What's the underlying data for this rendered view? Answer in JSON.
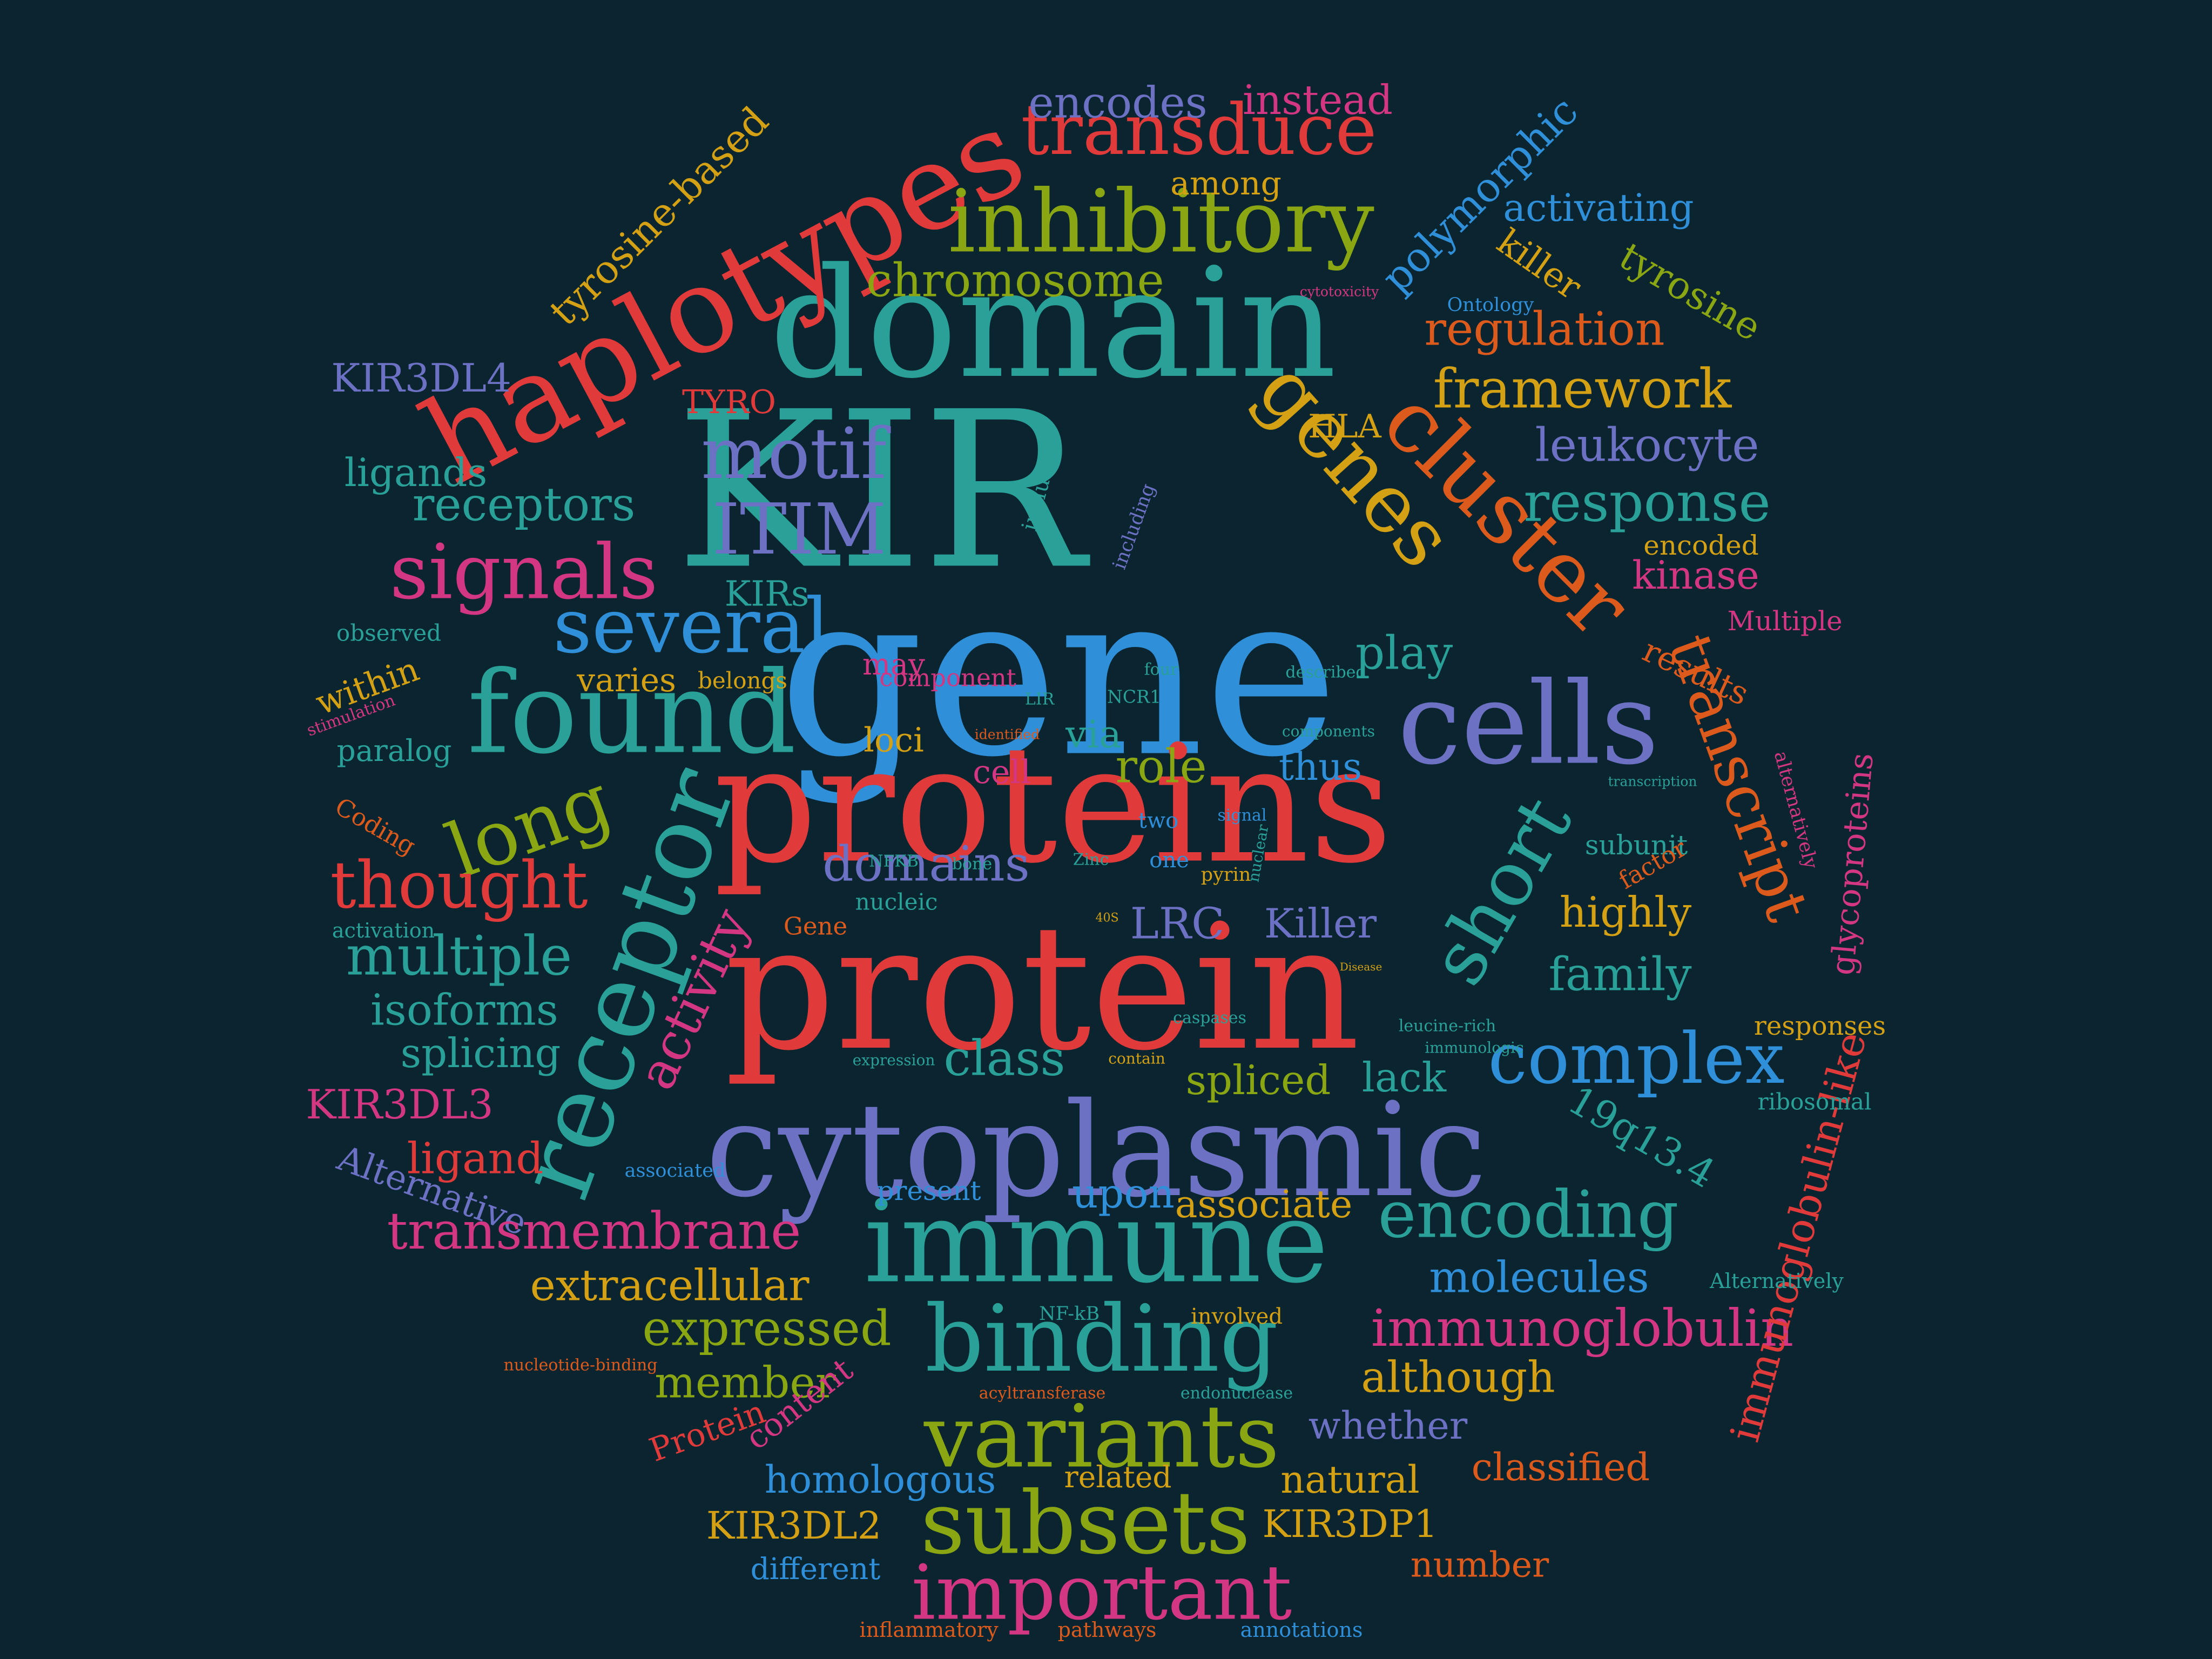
{
  "background": "#0b2530",
  "palette": {
    "red": "#e03a3a",
    "teal": "#2aa198",
    "blue": "#2f8fd8",
    "olive": "#8aa613",
    "gold": "#d4a014",
    "magenta": "#d33682",
    "purple": "#6c71c4",
    "orange": "#dd5a1d"
  },
  "words": [
    {
      "text": "gene",
      "color": "#2f8fd8"
    },
    {
      "text": "KIR",
      "color": "#2aa198"
    },
    {
      "text": "proteins",
      "color": "#e03a3a"
    },
    {
      "text": "protein",
      "color": "#e03a3a"
    },
    {
      "text": "domain",
      "color": "#2aa198"
    },
    {
      "text": "cytoplasmic",
      "color": "#6c71c4"
    },
    {
      "text": "immune",
      "color": "#2aa198"
    },
    {
      "text": "haplotypes",
      "color": "#e03a3a"
    },
    {
      "text": "found",
      "color": "#2aa198"
    },
    {
      "text": "cells",
      "color": "#6c71c4"
    },
    {
      "text": "inhibitory",
      "color": "#8aa613"
    },
    {
      "text": "binding",
      "color": "#2aa198"
    },
    {
      "text": "receptor",
      "color": "#2aa198"
    },
    {
      "text": "variants",
      "color": "#8aa613"
    },
    {
      "text": "cluster",
      "color": "#dd5a1d"
    },
    {
      "text": "genes",
      "color": "#d4a014"
    },
    {
      "text": "transduce",
      "color": "#e03a3a"
    },
    {
      "text": "subsets",
      "color": "#8aa613"
    },
    {
      "text": "important",
      "color": "#d33682"
    },
    {
      "text": "several",
      "color": "#2f8fd8"
    },
    {
      "text": "signals",
      "color": "#d33682"
    },
    {
      "text": "short",
      "color": "#2aa198"
    },
    {
      "text": "transcript",
      "color": "#dd5a1d"
    },
    {
      "text": "long",
      "color": "#8aa613"
    },
    {
      "text": "motif",
      "color": "#6c71c4"
    },
    {
      "text": "ITIM",
      "color": "#6c71c4"
    },
    {
      "text": "complex",
      "color": "#2f8fd8"
    },
    {
      "text": "thought",
      "color": "#e03a3a"
    },
    {
      "text": "encoding",
      "color": "#2aa198"
    },
    {
      "text": "immunoglobulin",
      "color": "#d33682"
    },
    {
      "text": "immunoglobulin-like",
      "color": "#e03a3a"
    },
    {
      "text": "framework",
      "color": "#d4a014"
    },
    {
      "text": "response",
      "color": "#2aa198"
    },
    {
      "text": "regulation",
      "color": "#dd5a1d"
    },
    {
      "text": "chromosome",
      "color": "#8aa613"
    },
    {
      "text": "encodes",
      "color": "#6c71c4"
    },
    {
      "text": "instead",
      "color": "#d33682"
    },
    {
      "text": "polymorphic",
      "color": "#2f8fd8"
    },
    {
      "text": "tyrosine-based",
      "color": "#d4a014"
    },
    {
      "text": "activating",
      "color": "#2f8fd8"
    },
    {
      "text": "killer",
      "color": "#d4a014"
    },
    {
      "text": "tyrosine",
      "color": "#8aa613"
    },
    {
      "text": "among",
      "color": "#d4a014"
    },
    {
      "text": "Ontology",
      "color": "#2f8fd8"
    },
    {
      "text": "leukocyte",
      "color": "#6c71c4"
    },
    {
      "text": "HLA",
      "color": "#d4a014"
    },
    {
      "text": "KIR3DL4",
      "color": "#6c71c4"
    },
    {
      "text": "TYRO",
      "color": "#e03a3a"
    },
    {
      "text": "ligands",
      "color": "#2aa198"
    },
    {
      "text": "receptors",
      "color": "#2aa198"
    },
    {
      "text": "KIRs",
      "color": "#2aa198"
    },
    {
      "text": "kinase",
      "color": "#d33682"
    },
    {
      "text": "encoded",
      "color": "#d4a014"
    },
    {
      "text": "Multiple",
      "color": "#d33682"
    },
    {
      "text": "results",
      "color": "#dd5a1d"
    },
    {
      "text": "observed",
      "color": "#2aa198"
    },
    {
      "text": "within",
      "color": "#d4a014"
    },
    {
      "text": "paralog",
      "color": "#2aa198"
    },
    {
      "text": "stimulation",
      "color": "#d33682"
    },
    {
      "text": "varies",
      "color": "#d4a014"
    },
    {
      "text": "belongs",
      "color": "#d4a014"
    },
    {
      "text": "may",
      "color": "#d33682"
    },
    {
      "text": "play",
      "color": "#2aa198"
    },
    {
      "text": "role",
      "color": "#8aa613"
    },
    {
      "text": "via",
      "color": "#2aa198"
    },
    {
      "text": "cell",
      "color": "#d33682"
    },
    {
      "text": "thus",
      "color": "#2f8fd8"
    },
    {
      "text": "loci",
      "color": "#d4a014"
    },
    {
      "text": "domains",
      "color": "#6c71c4"
    },
    {
      "text": "Coding",
      "color": "#dd5a1d"
    },
    {
      "text": "multiple",
      "color": "#2aa198"
    },
    {
      "text": "activity",
      "color": "#d33682"
    },
    {
      "text": "isoforms",
      "color": "#2aa198"
    },
    {
      "text": "splicing",
      "color": "#2aa198"
    },
    {
      "text": "activation",
      "color": "#2aa198"
    },
    {
      "text": "KIR3DL3",
      "color": "#d33682"
    },
    {
      "text": "ligand",
      "color": "#e03a3a"
    },
    {
      "text": "Alternative",
      "color": "#6c71c4"
    },
    {
      "text": "transmembrane",
      "color": "#d33682"
    },
    {
      "text": "extracellular",
      "color": "#d4a014"
    },
    {
      "text": "expressed",
      "color": "#8aa613"
    },
    {
      "text": "member",
      "color": "#8aa613"
    },
    {
      "text": "content",
      "color": "#d33682"
    },
    {
      "text": "Protein",
      "color": "#e03a3a"
    },
    {
      "text": "nucleotide-binding",
      "color": "#dd5a1d"
    },
    {
      "text": "class",
      "color": "#2aa198"
    },
    {
      "text": "LRC",
      "color": "#6c71c4"
    },
    {
      "text": "Killer",
      "color": "#6c71c4"
    },
    {
      "text": "family",
      "color": "#2aa198"
    },
    {
      "text": "highly",
      "color": "#d4a014"
    },
    {
      "text": "spliced",
      "color": "#8aa613"
    },
    {
      "text": "lack",
      "color": "#2aa198"
    },
    {
      "text": "subunit",
      "color": "#2aa198"
    },
    {
      "text": "factor",
      "color": "#dd5a1d"
    },
    {
      "text": "19q13.4",
      "color": "#2aa198"
    },
    {
      "text": "glycoproteins",
      "color": "#d33682"
    },
    {
      "text": "responses",
      "color": "#d4a014"
    },
    {
      "text": "ribosomal",
      "color": "#2aa198"
    },
    {
      "text": "alternatively",
      "color": "#d33682"
    },
    {
      "text": "upon",
      "color": "#2f8fd8"
    },
    {
      "text": "associate",
      "color": "#d4a014"
    },
    {
      "text": "present",
      "color": "#2f8fd8"
    },
    {
      "text": "associated",
      "color": "#2f8fd8"
    },
    {
      "text": "molecules",
      "color": "#2f8fd8"
    },
    {
      "text": "Alternatively",
      "color": "#2aa198"
    },
    {
      "text": "although",
      "color": "#d4a014"
    },
    {
      "text": "whether",
      "color": "#6c71c4"
    },
    {
      "text": "classified",
      "color": "#dd5a1d"
    },
    {
      "text": "natural",
      "color": "#d4a014"
    },
    {
      "text": "related",
      "color": "#d4a014"
    },
    {
      "text": "homologous",
      "color": "#2f8fd8"
    },
    {
      "text": "KIR3DL2",
      "color": "#d4a014"
    },
    {
      "text": "KIR3DP1",
      "color": "#d4a014"
    },
    {
      "text": "different",
      "color": "#2f8fd8"
    },
    {
      "text": "number",
      "color": "#dd5a1d"
    },
    {
      "text": "inflammatory",
      "color": "#dd5a1d"
    },
    {
      "text": "pathways",
      "color": "#dd5a1d"
    },
    {
      "text": "annotations",
      "color": "#2f8fd8"
    },
    {
      "text": "involved",
      "color": "#d4a014"
    },
    {
      "text": "NF-kB",
      "color": "#2aa198"
    },
    {
      "text": "acyltransferase",
      "color": "#dd5a1d"
    },
    {
      "text": "endonuclease",
      "color": "#2aa198"
    },
    {
      "text": "include",
      "color": "#2aa198"
    },
    {
      "text": "including",
      "color": "#6c71c4"
    },
    {
      "text": "Gene",
      "color": "#dd5a1d"
    },
    {
      "text": "nucleic",
      "color": "#2aa198"
    },
    {
      "text": "NFKB",
      "color": "#2aa198"
    },
    {
      "text": "two",
      "color": "#2f8fd8"
    },
    {
      "text": "one",
      "color": "#2f8fd8"
    },
    {
      "text": "caspases",
      "color": "#2aa198"
    },
    {
      "text": "component",
      "color": "#d33682"
    },
    {
      "text": "described",
      "color": "#2aa198"
    },
    {
      "text": "identified",
      "color": "#dd5a1d"
    },
    {
      "text": "bone",
      "color": "#2aa198"
    },
    {
      "text": "contain",
      "color": "#d4a014"
    },
    {
      "text": "expression",
      "color": "#2aa198"
    },
    {
      "text": "Zinc",
      "color": "#2aa198"
    },
    {
      "text": "pyrin",
      "color": "#d4a014"
    },
    {
      "text": "nuclear",
      "color": "#2aa198"
    },
    {
      "text": "signal",
      "color": "#2f8fd8"
    },
    {
      "text": "components",
      "color": "#2aa198"
    },
    {
      "text": "cytotoxicity",
      "color": "#d33682"
    },
    {
      "text": "NCR1",
      "color": "#2aa198"
    },
    {
      "text": "four",
      "color": "#2aa198"
    },
    {
      "text": "LIR",
      "color": "#2aa198"
    },
    {
      "text": "transcription",
      "color": "#2aa198"
    },
    {
      "text": "immunologic",
      "color": "#2aa198"
    },
    {
      "text": "leucine-rich",
      "color": "#2aa198"
    },
    {
      "text": "Disease",
      "color": "#d4a014"
    },
    {
      "text": "40S",
      "color": "#d4a014"
    }
  ]
}
